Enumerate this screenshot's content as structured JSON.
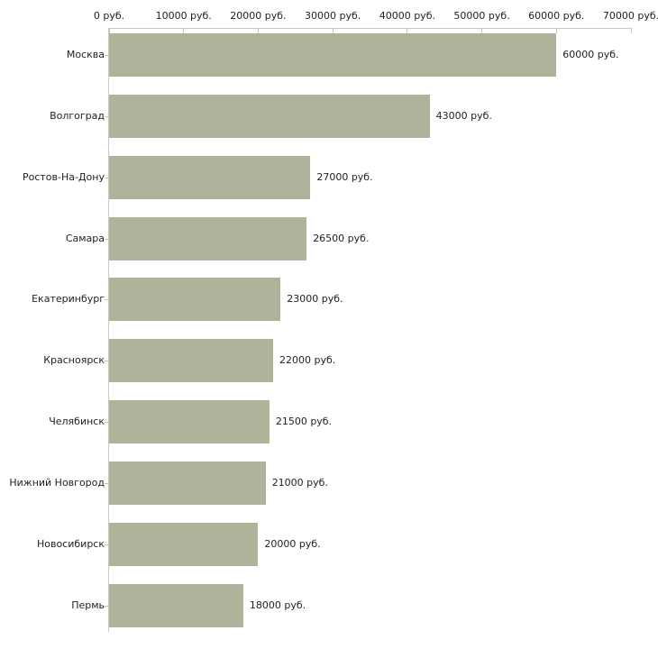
{
  "chart_data": {
    "type": "bar",
    "orientation": "horizontal",
    "title": "",
    "xlabel": "",
    "ylabel": "",
    "unit": "руб.",
    "categories": [
      "Москва",
      "Волгоград",
      "Ростов-На-Дону",
      "Самара",
      "Екатеринбург",
      "Красноярск",
      "Челябинск",
      "Нижний Новгород",
      "Новосибирск",
      "Пермь"
    ],
    "values": [
      60000,
      43000,
      27000,
      26500,
      23000,
      22000,
      21500,
      21000,
      20000,
      18000
    ],
    "value_labels": [
      "60000 руб.",
      "43000 руб.",
      "27000 руб.",
      "26500 руб.",
      "23000 руб.",
      "22000 руб.",
      "21500 руб.",
      "21000 руб.",
      "20000 руб.",
      "18000 руб."
    ],
    "x_tick_values": [
      0,
      10000,
      20000,
      30000,
      40000,
      50000,
      60000,
      70000
    ],
    "x_tick_labels": [
      "0 руб.",
      "10000 руб.",
      "20000 руб.",
      "30000 руб.",
      "40000 руб.",
      "50000 руб.",
      "60000 руб.",
      "70000 руб."
    ],
    "xlim": [
      0,
      70000
    ],
    "grid": false,
    "legend": false,
    "axis_position": "top-left",
    "colors": {
      "bar_fill": "#adb49a",
      "axis_line": "#c9c9c9",
      "tick_mark": "#c9c99a",
      "text": "#1f1f1f",
      "background": "#ffffff"
    }
  }
}
